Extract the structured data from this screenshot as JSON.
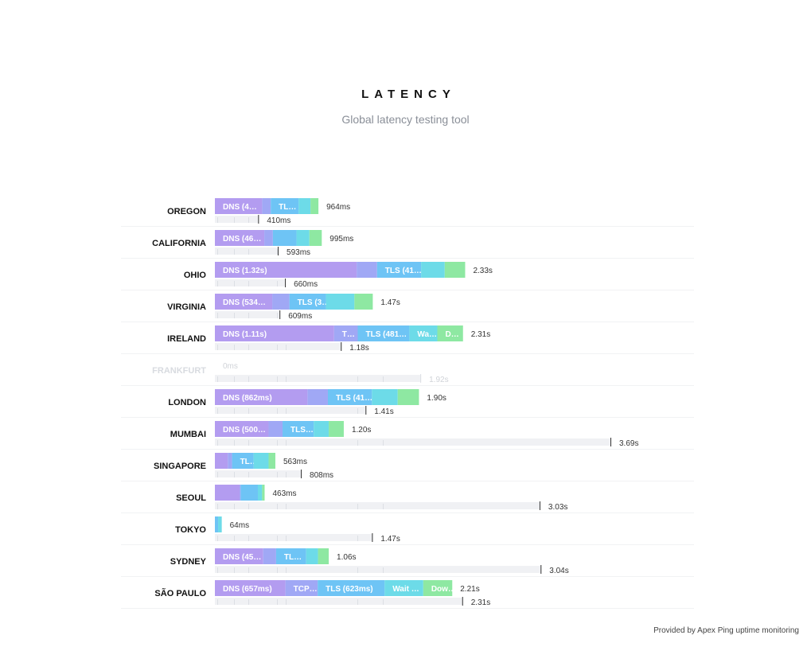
{
  "header": {
    "title": "LATENCY",
    "subtitle": "Global latency testing tool"
  },
  "footer": {
    "text": "Provided by Apex Ping uptime monitoring"
  },
  "colors": {
    "dns": "#b39cf0",
    "tcp": "#a0a8f5",
    "tls": "#6ec4f5",
    "wait": "#6ddbe8",
    "download": "#8ee8a2",
    "track": "#f0f1f4",
    "tick": "#dcdfe4",
    "marker": "#333333"
  },
  "chart_data": {
    "type": "bar",
    "stack_order": [
      "dns",
      "tcp",
      "tls",
      "wait",
      "download"
    ],
    "scale_max_ms": 3690,
    "rows": [
      {
        "region": "OREGON",
        "total_label": "964ms",
        "secondary_label": "410ms",
        "secondary_ms": 410,
        "segments": {
          "dns": 440,
          "tcp": 80,
          "tls": 260,
          "wait": 110,
          "download": 74
        },
        "labels": {
          "dns": "DNS (4…",
          "tls": "TL…"
        }
      },
      {
        "region": "CALIFORNIA",
        "total_label": "995ms",
        "secondary_label": "593ms",
        "secondary_ms": 593,
        "segments": {
          "dns": 460,
          "tcp": 80,
          "tls": 220,
          "wait": 120,
          "download": 115
        },
        "labels": {
          "dns": "DNS (46…"
        }
      },
      {
        "region": "OHIO",
        "total_label": "2.33s",
        "secondary_label": "660ms",
        "secondary_ms": 660,
        "segments": {
          "dns": 1320,
          "tcp": 190,
          "tls": 410,
          "wait": 220,
          "download": 190
        },
        "labels": {
          "dns": "DNS (1.32s)",
          "tls": "TLS (41…"
        }
      },
      {
        "region": "VIRGINIA",
        "total_label": "1.47s",
        "secondary_label": "609ms",
        "secondary_ms": 609,
        "segments": {
          "dns": 534,
          "tcp": 160,
          "tls": 340,
          "wait": 265,
          "download": 171
        },
        "labels": {
          "dns": "DNS (534…",
          "tls": "TLS (3…"
        }
      },
      {
        "region": "IRELAND",
        "total_label": "2.31s",
        "secondary_label": "1.18s",
        "secondary_ms": 1180,
        "segments": {
          "dns": 1110,
          "tcp": 220,
          "tls": 481,
          "wait": 260,
          "download": 239
        },
        "labels": {
          "dns": "DNS (1.11s)",
          "tcp": "T…",
          "tls": "TLS (481…",
          "wait": "Wa…",
          "download": "D…"
        }
      },
      {
        "region": "FRANKFURT",
        "disabled": true,
        "total_label": "0ms",
        "secondary_label": "1.92s",
        "secondary_ms": 1920,
        "segments": {
          "dns": 0,
          "tcp": 0,
          "tls": 0,
          "wait": 0,
          "download": 0
        },
        "labels": {}
      },
      {
        "region": "LONDON",
        "total_label": "1.90s",
        "secondary_label": "1.41s",
        "secondary_ms": 1410,
        "segments": {
          "dns": 862,
          "tcp": 190,
          "tls": 410,
          "wait": 240,
          "download": 198
        },
        "labels": {
          "dns": "DNS (862ms)",
          "tls": "TLS (41…"
        }
      },
      {
        "region": "MUMBAI",
        "total_label": "1.20s",
        "secondary_label": "3.69s",
        "secondary_ms": 3690,
        "segments": {
          "dns": 500,
          "tcp": 130,
          "tls": 290,
          "wait": 140,
          "download": 140
        },
        "labels": {
          "dns": "DNS (500…",
          "tls": "TLS…"
        }
      },
      {
        "region": "SINGAPORE",
        "total_label": "563ms",
        "secondary_label": "808ms",
        "secondary_ms": 808,
        "segments": {
          "dns": 120,
          "tcp": 40,
          "tls": 200,
          "wait": 140,
          "download": 63
        },
        "labels": {
          "tls": "TL…"
        }
      },
      {
        "region": "SEOUL",
        "total_label": "463ms",
        "secondary_label": "3.03s",
        "secondary_ms": 3030,
        "segments": {
          "dns": 230,
          "tcp": 10,
          "tls": 160,
          "wait": 40,
          "download": 23
        },
        "labels": {}
      },
      {
        "region": "TOKYO",
        "total_label": "64ms",
        "secondary_label": "1.47s",
        "secondary_ms": 1470,
        "segments": {
          "dns": 0,
          "tcp": 0,
          "tls": 30,
          "wait": 34,
          "download": 0
        },
        "labels": {}
      },
      {
        "region": "SYDNEY",
        "total_label": "1.06s",
        "secondary_label": "3.04s",
        "secondary_ms": 3040,
        "segments": {
          "dns": 450,
          "tcp": 120,
          "tls": 280,
          "wait": 110,
          "download": 100
        },
        "labels": {
          "dns": "DNS (45…",
          "tls": "TL…"
        }
      },
      {
        "region": "SÃO PAULO",
        "total_label": "2.21s",
        "secondary_label": "2.31s",
        "secondary_ms": 2310,
        "segments": {
          "dns": 657,
          "tcp": 300,
          "tls": 623,
          "wait": 360,
          "download": 270
        },
        "labels": {
          "dns": "DNS (657ms)",
          "tcp": "TCP…",
          "tls": "TLS (623ms)",
          "wait": "Wait …",
          "download": "Dow…"
        }
      }
    ]
  }
}
